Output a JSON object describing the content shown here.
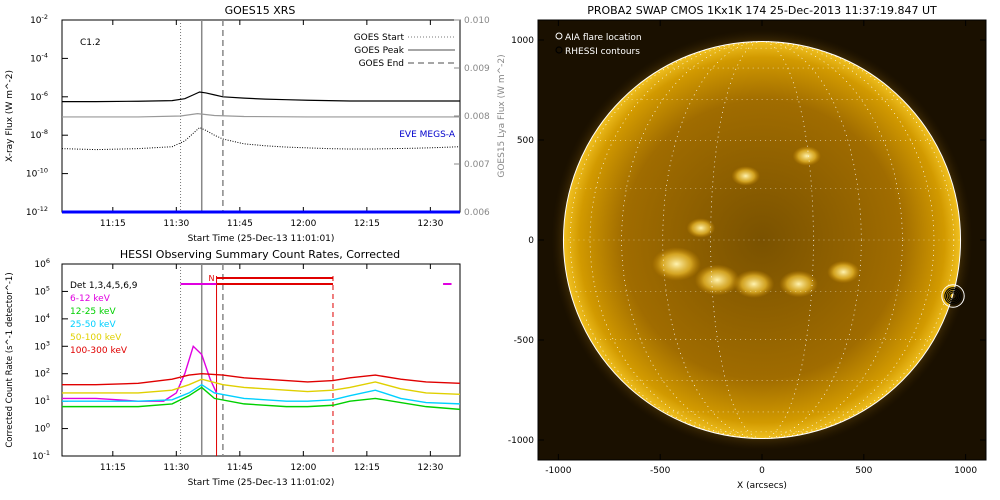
{
  "chart_data": [
    {
      "type": "line",
      "title": "GOES15 XRS",
      "xlabel": "Start Time (25-Dec-13 11:01:01)",
      "ylabel": "X-ray Flux (W m^-2)",
      "ylabel_right": "GOES15 Lya Flux (W m^-2)",
      "xlim": [
        2,
        96
      ],
      "ylim_log": [
        -12,
        -2
      ],
      "ylim_right": [
        0.006,
        0.01
      ],
      "xticks": [
        {
          "x": 14,
          "label": "11:15"
        },
        {
          "x": 29,
          "label": "11:30"
        },
        {
          "x": 44,
          "label": "11:45"
        },
        {
          "x": 59,
          "label": "12:00"
        },
        {
          "x": 74,
          "label": "12:15"
        },
        {
          "x": 89,
          "label": "12:30"
        }
      ],
      "yticks_left": [
        {
          "exp": -2,
          "label": "10",
          "sup": "-2"
        },
        {
          "exp": -4,
          "label": "10",
          "sup": "-4"
        },
        {
          "exp": -6,
          "label": "10",
          "sup": "-6"
        },
        {
          "exp": -8,
          "label": "10",
          "sup": "-8"
        },
        {
          "exp": -10,
          "label": "10",
          "sup": "-10"
        },
        {
          "exp": -12,
          "label": "10",
          "sup": "-12"
        }
      ],
      "yticks_right": [
        "0.006",
        "0.007",
        "0.008",
        "0.009",
        "0.010"
      ],
      "annotation": "C1.2",
      "eve_label": "EVE MEGS-A",
      "legend": {
        "placement": "top-right",
        "items": [
          "GOES Start",
          "GOES Peak",
          "GOES End"
        ]
      },
      "markers": {
        "start": 30,
        "peak": 35,
        "end": 40
      },
      "series": [
        {
          "role": "long",
          "x": [
            2,
            10,
            20,
            28,
            31,
            33,
            34.5,
            36,
            38,
            40,
            45,
            50,
            55,
            60,
            65,
            70,
            75,
            80,
            85,
            90,
            96
          ],
          "y": [
            -6.25,
            -6.25,
            -6.23,
            -6.2,
            -6.1,
            -5.9,
            -5.75,
            -5.8,
            -5.9,
            -6.0,
            -6.07,
            -6.12,
            -6.15,
            -6.18,
            -6.2,
            -6.22,
            -6.22,
            -6.22,
            -6.22,
            -6.22,
            -6.22
          ]
        },
        {
          "role": "short",
          "x": [
            2,
            10,
            20,
            28,
            31,
            33,
            34.5,
            36,
            38,
            40,
            45,
            50,
            55,
            60,
            65,
            70,
            75,
            80,
            85,
            90,
            96
          ],
          "y": [
            -8.7,
            -8.75,
            -8.7,
            -8.6,
            -8.3,
            -7.9,
            -7.6,
            -7.75,
            -8.0,
            -8.2,
            -8.45,
            -8.55,
            -8.62,
            -8.66,
            -8.7,
            -8.72,
            -8.72,
            -8.7,
            -8.68,
            -8.65,
            -8.6
          ]
        },
        {
          "role": "lya",
          "x": [
            2,
            20,
            30,
            34,
            38,
            45,
            60,
            75,
            96
          ],
          "y": [
            0.00798,
            0.00798,
            0.008,
            0.00805,
            0.00801,
            0.00799,
            0.00798,
            0.00798,
            0.00798
          ]
        },
        {
          "role": "eve",
          "x": [
            2,
            96
          ],
          "y": [
            -12,
            -12
          ]
        }
      ]
    },
    {
      "type": "line",
      "title": "HESSI Observing Summary Count Rates, Corrected",
      "xlabel": "Start Time (25-Dec-13 11:01:02)",
      "ylabel": "Corrected Count Rate (s^-1 detector^-1)",
      "xlim": [
        2,
        96
      ],
      "ylim_log": [
        -1,
        6
      ],
      "xticks": [
        {
          "x": 14,
          "label": "11:15"
        },
        {
          "x": 29,
          "label": "11:30"
        },
        {
          "x": 44,
          "label": "11:45"
        },
        {
          "x": 59,
          "label": "12:00"
        },
        {
          "x": 74,
          "label": "12:15"
        },
        {
          "x": 89,
          "label": "12:30"
        }
      ],
      "yticks_left": [
        {
          "exp": 6,
          "label": "10",
          "sup": "6"
        },
        {
          "exp": 5,
          "label": "10",
          "sup": "5"
        },
        {
          "exp": 4,
          "label": "10",
          "sup": "4"
        },
        {
          "exp": 3,
          "label": "10",
          "sup": "3"
        },
        {
          "exp": 2,
          "label": "10",
          "sup": "2"
        },
        {
          "exp": 1,
          "label": "10",
          "sup": "1"
        },
        {
          "exp": 0,
          "label": "10",
          "sup": "0"
        },
        {
          "exp": -1,
          "label": "10",
          "sup": "-1"
        }
      ],
      "legend": {
        "placement": "top-left"
      },
      "detectors_label": "Det 1,3,4,5,6,9",
      "night_label": "N",
      "markers": {
        "start": 30,
        "peak": 35,
        "end": 40,
        "night_start": 38.5,
        "night_end": 66
      },
      "status_bars": [
        {
          "color": "#e000e0",
          "x1": 30,
          "x2": 38.5
        },
        {
          "color": "#e00000",
          "x1": 38.5,
          "x2": 66
        },
        {
          "color": "#e000e0",
          "x1": 92,
          "x2": 94
        }
      ],
      "series": [
        {
          "name": "6-12 keV",
          "color": "#e000e0",
          "x": [
            2,
            10,
            20,
            26,
            29,
            31,
            33,
            35,
            37,
            38.5
          ],
          "y": [
            1.1,
            1.1,
            1.0,
            1.0,
            1.3,
            2.0,
            3.0,
            2.7,
            1.8,
            1.3
          ]
        },
        {
          "name": "12-25 keV",
          "color": "#00d000",
          "x": [
            2,
            10,
            20,
            28,
            32,
            35,
            38,
            45,
            55,
            60,
            66,
            70,
            76,
            82,
            88,
            96
          ],
          "y": [
            0.8,
            0.8,
            0.8,
            0.9,
            1.2,
            1.5,
            1.1,
            0.9,
            0.8,
            0.8,
            0.85,
            1.0,
            1.1,
            0.95,
            0.8,
            0.7
          ]
        },
        {
          "name": "25-50 keV",
          "color": "#00d0ff",
          "x": [
            2,
            10,
            20,
            28,
            32,
            35,
            38,
            45,
            55,
            60,
            66,
            70,
            76,
            82,
            88,
            96
          ],
          "y": [
            1.0,
            1.0,
            1.0,
            1.05,
            1.3,
            1.6,
            1.3,
            1.1,
            1.0,
            1.0,
            1.05,
            1.2,
            1.4,
            1.1,
            0.95,
            0.9
          ]
        },
        {
          "name": "50-100 keV",
          "color": "#e0d000",
          "x": [
            2,
            10,
            20,
            28,
            32,
            35,
            40,
            45,
            55,
            60,
            66,
            70,
            76,
            82,
            88,
            96
          ],
          "y": [
            1.3,
            1.3,
            1.3,
            1.4,
            1.6,
            1.8,
            1.6,
            1.5,
            1.4,
            1.35,
            1.4,
            1.5,
            1.7,
            1.45,
            1.3,
            1.25
          ]
        },
        {
          "name": "100-300 keV",
          "color": "#e00000",
          "x": [
            2,
            10,
            20,
            28,
            32,
            35,
            40,
            45,
            55,
            60,
            66,
            70,
            76,
            82,
            88,
            96
          ],
          "y": [
            1.6,
            1.6,
            1.65,
            1.8,
            1.95,
            2.0,
            1.95,
            1.85,
            1.75,
            1.7,
            1.75,
            1.85,
            1.95,
            1.8,
            1.7,
            1.65
          ]
        }
      ]
    },
    {
      "type": "scatter",
      "title": "PROBA2 SWAP CMOS 1Kx1K 174 25-Dec-2013 11:37:19.847 UT",
      "xlabel": "X (arcsecs)",
      "ylabel": "",
      "xlim": [
        -1100,
        1100
      ],
      "ylim": [
        -1100,
        1100
      ],
      "xticks": [
        -1000,
        -500,
        0,
        500,
        1000
      ],
      "yticks": [
        1000,
        500,
        0,
        -500,
        -1000
      ],
      "sun_radius": 975,
      "legend": {
        "placement": "top-left",
        "items": [
          "AIA flare location",
          "RHESSI contours"
        ]
      },
      "flare": {
        "x": 938,
        "y": -280,
        "circle_radius": 55
      },
      "contour_radii": [
        8,
        12,
        16,
        20
      ]
    }
  ]
}
